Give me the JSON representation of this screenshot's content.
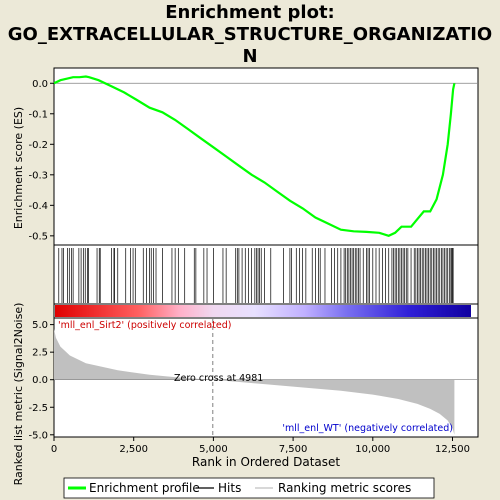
{
  "title_line1": "Enrichment plot:",
  "title_line2": "GO_EXTRACELLULAR_STRUCTURE_ORGANIZATIO",
  "title_line3": "N",
  "chart_data": {
    "type": "line",
    "panels": [
      {
        "name": "enrichment",
        "ylabel": "Enrichment score (ES)",
        "ylim": [
          -0.53,
          0.05
        ],
        "yticks": [
          0.0,
          -0.1,
          -0.2,
          -0.3,
          -0.4,
          -0.5
        ],
        "ytick_labels": [
          "0.0",
          "-0.1",
          "-0.2",
          "-0.3",
          "-0.4",
          "-0.5"
        ],
        "series": [
          {
            "name": "Enrichment profile",
            "color": "#00ff00",
            "x": [
              0,
              200,
              400,
              600,
              800,
              1000,
              1100,
              1400,
              1800,
              2200,
              2600,
              3000,
              3400,
              3800,
              4200,
              4600,
              5000,
              5400,
              5800,
              6200,
              6600,
              7000,
              7400,
              7800,
              8200,
              8600,
              9000,
              9400,
              9800,
              10200,
              10500,
              10700,
              10900,
              11200,
              11400,
              11600,
              11800,
              12000,
              12200,
              12350,
              12450,
              12520,
              12560
            ],
            "y": [
              0.0,
              0.01,
              0.015,
              0.02,
              0.02,
              0.022,
              0.02,
              0.01,
              -0.01,
              -0.03,
              -0.055,
              -0.08,
              -0.095,
              -0.12,
              -0.15,
              -0.18,
              -0.21,
              -0.24,
              -0.27,
              -0.3,
              -0.325,
              -0.355,
              -0.385,
              -0.41,
              -0.44,
              -0.46,
              -0.48,
              -0.485,
              -0.487,
              -0.49,
              -0.5,
              -0.49,
              -0.47,
              -0.47,
              -0.445,
              -0.42,
              -0.42,
              -0.38,
              -0.3,
              -0.2,
              -0.1,
              -0.02,
              0.0
            ]
          }
        ]
      },
      {
        "name": "ranking-metric",
        "xlabel": "Rank in Ordered Dataset",
        "ylabel": "Ranked list metric (Signal2Noise)",
        "ylim": [
          -5.2,
          5.6
        ],
        "yticks": [
          5.0,
          2.5,
          0.0,
          -2.5,
          -5.0
        ],
        "ytick_labels": [
          "5.0",
          "2.5",
          "0.0",
          "-2.5",
          "-5.0"
        ],
        "xlim": [
          0,
          13300
        ],
        "xticks": [
          0,
          2500,
          5000,
          7500,
          10000,
          12500
        ],
        "xtick_labels": [
          "0",
          "2,500",
          "5,000",
          "7,500",
          "10,000",
          "12,500"
        ],
        "series": [
          {
            "name": "Ranking metric scores",
            "color": "#c0c0c0",
            "x": [
              0,
              60,
              200,
              500,
              1000,
              2000,
              3000,
              4000,
              4981,
              6000,
              7000,
              8000,
              9000,
              10000,
              10800,
              11400,
              11800,
              12100,
              12350,
              12500,
              12560
            ],
            "y": [
              4.6,
              3.8,
              3.0,
              2.2,
              1.5,
              0.85,
              0.45,
              0.18,
              0.0,
              -0.25,
              -0.5,
              -0.75,
              -1.0,
              -1.35,
              -1.75,
              -2.2,
              -2.65,
              -3.1,
              -3.7,
              -4.4,
              -5.0
            ]
          }
        ],
        "annotations": {
          "positive": "'mll_enl_Sirt2' (positively correlated)",
          "negative": "'mll_enl_WT' (negatively correlated)",
          "zero_cross": "Zero cross at 4981",
          "zero_cross_value": 4981
        }
      }
    ],
    "hits": [
      150,
      250,
      300,
      420,
      480,
      550,
      600,
      780,
      850,
      920,
      980,
      1050,
      1080,
      1350,
      1420,
      1450,
      1800,
      1880,
      1900,
      2000,
      2250,
      2400,
      2480,
      2550,
      2800,
      2900,
      3000,
      3050,
      3120,
      3200,
      3400,
      3700,
      3800,
      3900,
      4100,
      4400,
      4450,
      4700,
      4800,
      5000,
      5300,
      5400,
      5700,
      5750,
      5800,
      5900,
      6000,
      6100,
      6200,
      6300,
      6350,
      6400,
      6450,
      6500,
      6600,
      6800,
      7200,
      7400,
      7450,
      7600,
      7700,
      7800,
      7900,
      8100,
      8200,
      8300,
      8350,
      8500,
      8700,
      8800,
      8900,
      9000,
      9100,
      9150,
      9200,
      9250,
      9300,
      9350,
      9400,
      9450,
      9500,
      9550,
      9600,
      9700,
      9800,
      9850,
      9900,
      10000,
      10100,
      10200,
      10300,
      10400,
      10500,
      10600,
      10650,
      10700,
      10750,
      10800,
      10850,
      10900,
      10950,
      11000,
      11050,
      11100,
      11200,
      11300,
      11350,
      11400,
      11450,
      11500,
      11550,
      11600,
      11650,
      11700,
      11750,
      11800,
      11850,
      11900,
      11950,
      12000,
      12050,
      12100,
      12150,
      12200,
      12250,
      12300,
      12350,
      12400,
      12450,
      12480,
      12500,
      12520
    ],
    "legend": {
      "placement": "bottom",
      "entries": [
        "Enrichment profile",
        "Hits",
        "Ranking metric scores"
      ]
    }
  }
}
